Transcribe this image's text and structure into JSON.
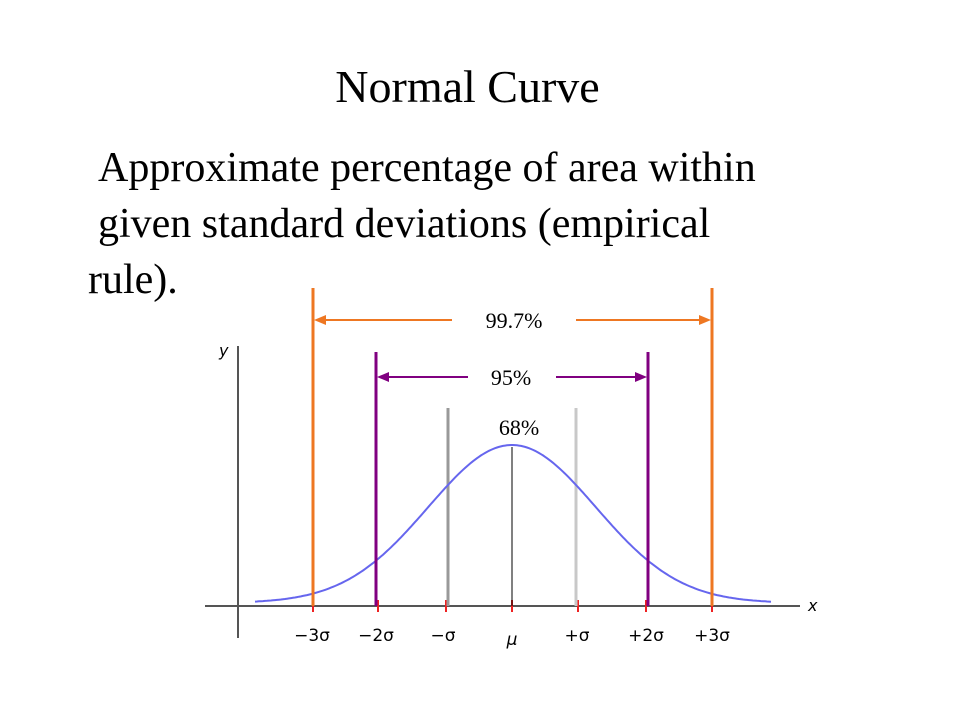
{
  "title": "Normal Curve",
  "body": {
    "line1": "Approximate percentage of area within",
    "line2": "given standard deviations (empirical",
    "line3": "rule)."
  },
  "axes": {
    "x_label": "x",
    "y_label": "y"
  },
  "tick_labels": [
    "−3σ",
    "−2σ",
    "−σ",
    "μ",
    "+σ",
    "+2σ",
    "+3σ"
  ],
  "intervals": [
    {
      "label": "99.7%",
      "k": 3,
      "color": "#ee7722"
    },
    {
      "label": "95%",
      "k": 2,
      "color": "#800080"
    },
    {
      "label": "68%",
      "k": 1,
      "color": "#999999"
    }
  ],
  "colors": {
    "curve": "#6666ee",
    "tick_marks": "#ee2222",
    "axis": "#555555"
  }
}
